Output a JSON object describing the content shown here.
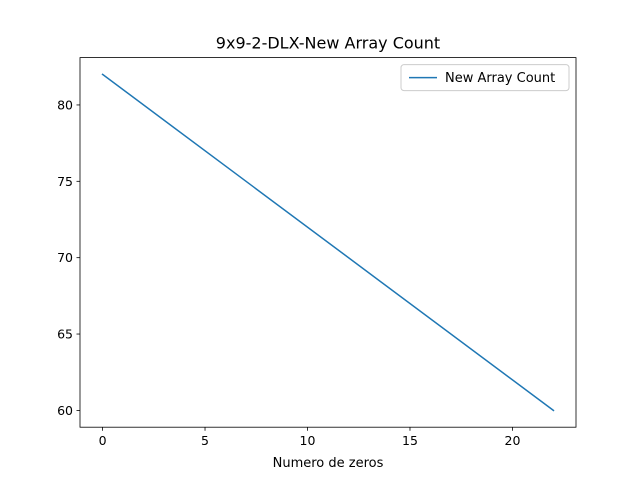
{
  "chart_data": {
    "type": "line",
    "title": "9x9-2-DLX-New Array Count",
    "xlabel": "Numero de zeros",
    "ylabel": "",
    "xlim": [
      -1.1,
      23.1
    ],
    "ylim": [
      58.9,
      83.1
    ],
    "xticks": [
      0,
      5,
      10,
      15,
      20
    ],
    "yticks": [
      60,
      65,
      70,
      75,
      80
    ],
    "grid": false,
    "legend_position": "top-right",
    "series": [
      {
        "name": "New Array Count",
        "color": "#1f77b4",
        "x": [
          0,
          22
        ],
        "y": [
          82,
          60
        ]
      }
    ]
  }
}
